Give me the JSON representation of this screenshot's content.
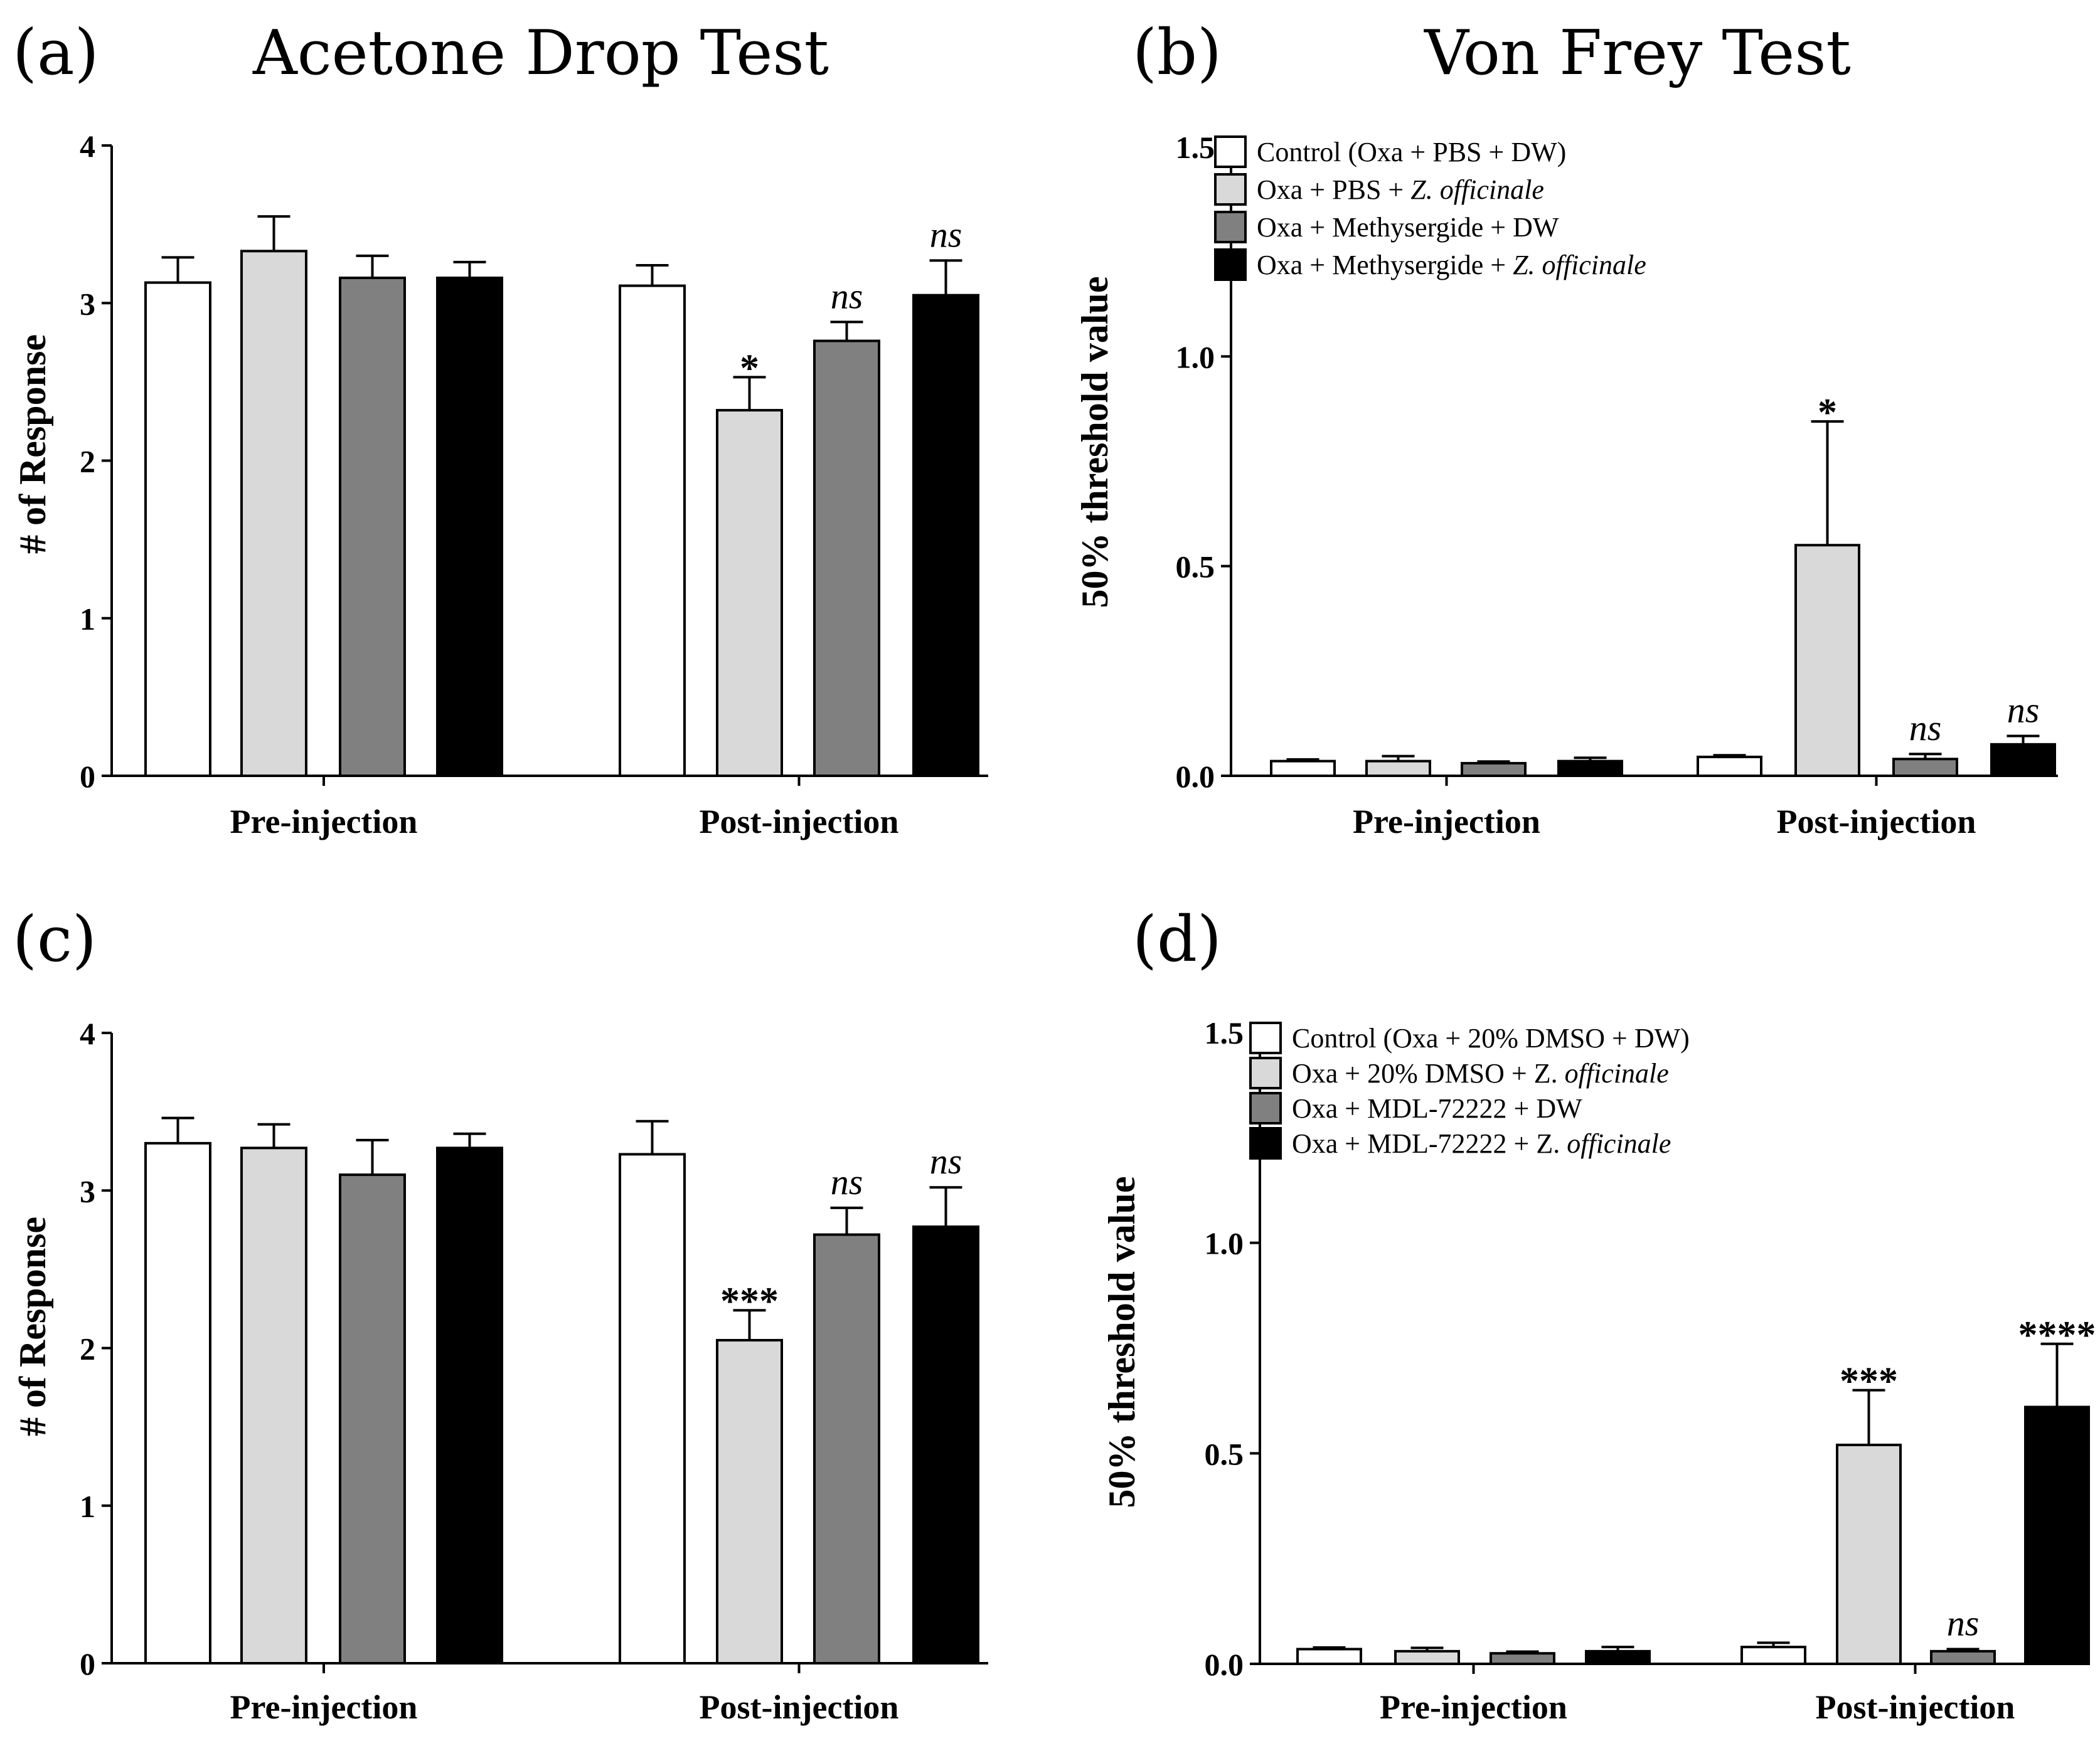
{
  "colors": {
    "axis": "#000000",
    "control": "#ffffff",
    "zingiber": "#d9d9d9",
    "antagonist": "#808080",
    "combo": "#000000",
    "outline": "#000000"
  },
  "chart_data": [
    {
      "id": "a",
      "type": "bar",
      "panel_label": "(a)",
      "title": "Acetone Drop Test",
      "ylabel": "# of Response",
      "xlabel": "",
      "ylim": [
        0,
        4
      ],
      "yticks": [
        "0",
        "1",
        "2",
        "3",
        "4"
      ],
      "categories": [
        "Pre-injection",
        "Post-injection"
      ],
      "legend": null,
      "series": [
        {
          "name": "Control (Oxa + PBS + DW)",
          "values": [
            3.13,
            3.11
          ],
          "errors": [
            0.16,
            0.13
          ],
          "labels": [
            "",
            ""
          ]
        },
        {
          "name": "Oxa + PBS + Z. officinale",
          "values": [
            3.33,
            2.32
          ],
          "errors": [
            0.22,
            0.21
          ],
          "labels": [
            "",
            "*"
          ]
        },
        {
          "name": "Oxa + Methysergide + DW",
          "values": [
            3.16,
            2.76
          ],
          "errors": [
            0.14,
            0.12
          ],
          "labels": [
            "",
            "ns"
          ]
        },
        {
          "name": "Oxa + Methysergide + Z. officinale",
          "values": [
            3.16,
            3.05
          ],
          "errors": [
            0.1,
            0.22
          ],
          "labels": [
            "",
            "ns"
          ]
        }
      ]
    },
    {
      "id": "b",
      "type": "bar",
      "panel_label": "(b)",
      "title": "Von Frey Test",
      "ylabel": "50% threshold value",
      "xlabel": "",
      "ylim": [
        0,
        1.5
      ],
      "yticks": [
        "0.0",
        "0.5",
        "1.0",
        "1.5"
      ],
      "categories": [
        "Pre-injection",
        "Post-injection"
      ],
      "legend": [
        {
          "parts": [
            "Control (Oxa + PBS + DW)"
          ]
        },
        {
          "parts": [
            "Oxa + PBS + ",
            "Z. officinale"
          ]
        },
        {
          "parts": [
            "Oxa + Methysergide + DW"
          ]
        },
        {
          "parts": [
            "Oxa + Methysergide + ",
            " Z. officinale"
          ]
        }
      ],
      "series": [
        {
          "name": "Control (Oxa + PBS + DW)",
          "values": [
            0.035,
            0.045
          ],
          "errors": [
            0.004,
            0.004
          ],
          "labels": [
            "",
            ""
          ]
        },
        {
          "name": "Oxa + PBS + Z. officinale",
          "values": [
            0.035,
            0.55
          ],
          "errors": [
            0.012,
            0.295
          ],
          "labels": [
            "",
            "*"
          ]
        },
        {
          "name": "Oxa + Methysergide + DW",
          "values": [
            0.03,
            0.04
          ],
          "errors": [
            0.004,
            0.012
          ],
          "labels": [
            "",
            "ns"
          ]
        },
        {
          "name": "Oxa + Methysergide + Z. officinale",
          "values": [
            0.035,
            0.075
          ],
          "errors": [
            0.008,
            0.02
          ],
          "labels": [
            "",
            "ns"
          ]
        }
      ]
    },
    {
      "id": "c",
      "type": "bar",
      "panel_label": "(c)",
      "title": "",
      "ylabel": "# of Response",
      "xlabel": "",
      "ylim": [
        0,
        4
      ],
      "yticks": [
        "0",
        "1",
        "2",
        "3",
        "4"
      ],
      "categories": [
        "Pre-injection",
        "Post-injection"
      ],
      "legend": null,
      "series": [
        {
          "name": "Control (Oxa + 20% DMSO + DW)",
          "values": [
            3.3,
            3.23
          ],
          "errors": [
            0.16,
            0.21
          ],
          "labels": [
            "",
            ""
          ]
        },
        {
          "name": "Oxa + 20% DMSO + Z. officinale",
          "values": [
            3.27,
            2.05
          ],
          "errors": [
            0.15,
            0.19
          ],
          "labels": [
            "",
            "***"
          ]
        },
        {
          "name": "Oxa + MDL-72222 + DW",
          "values": [
            3.1,
            2.72
          ],
          "errors": [
            0.22,
            0.17
          ],
          "labels": [
            "",
            "ns"
          ]
        },
        {
          "name": "Oxa + MDL-72222 + Z. officinale",
          "values": [
            3.27,
            2.77
          ],
          "errors": [
            0.09,
            0.25
          ],
          "labels": [
            "",
            "ns"
          ]
        }
      ]
    },
    {
      "id": "d",
      "type": "bar",
      "panel_label": "(d)",
      "title": "",
      "ylabel": "50% threshold value",
      "xlabel": "",
      "ylim": [
        0,
        1.5
      ],
      "yticks": [
        "0.0",
        "0.5",
        "1.0",
        "1.5"
      ],
      "categories": [
        "Pre-injection",
        "Post-injection"
      ],
      "legend": [
        {
          "parts": [
            "Control (Oxa + 20% DMSO + DW)"
          ]
        },
        {
          "parts": [
            "Oxa + 20% DMSO + Z. ",
            "officinale"
          ]
        },
        {
          "parts": [
            "Oxa + MDL-72222 + DW"
          ]
        },
        {
          "parts": [
            "Oxa + MDL-72222 + Z. ",
            "officinale"
          ]
        }
      ],
      "series": [
        {
          "name": "Control (Oxa + 20% DMSO + DW)",
          "values": [
            0.035,
            0.04
          ],
          "errors": [
            0.004,
            0.01
          ],
          "labels": [
            "",
            ""
          ]
        },
        {
          "name": "Oxa + 20% DMSO + Z. officinale",
          "values": [
            0.03,
            0.52
          ],
          "errors": [
            0.008,
            0.13
          ],
          "labels": [
            "",
            "***"
          ]
        },
        {
          "name": "Oxa + MDL-72222 + DW",
          "values": [
            0.025,
            0.03
          ],
          "errors": [
            0.004,
            0.005
          ],
          "labels": [
            "",
            "ns"
          ]
        },
        {
          "name": "Oxa + MDL-72222 + Z. officinale",
          "values": [
            0.03,
            0.61
          ],
          "errors": [
            0.01,
            0.15
          ],
          "labels": [
            "",
            "****"
          ]
        }
      ]
    }
  ]
}
